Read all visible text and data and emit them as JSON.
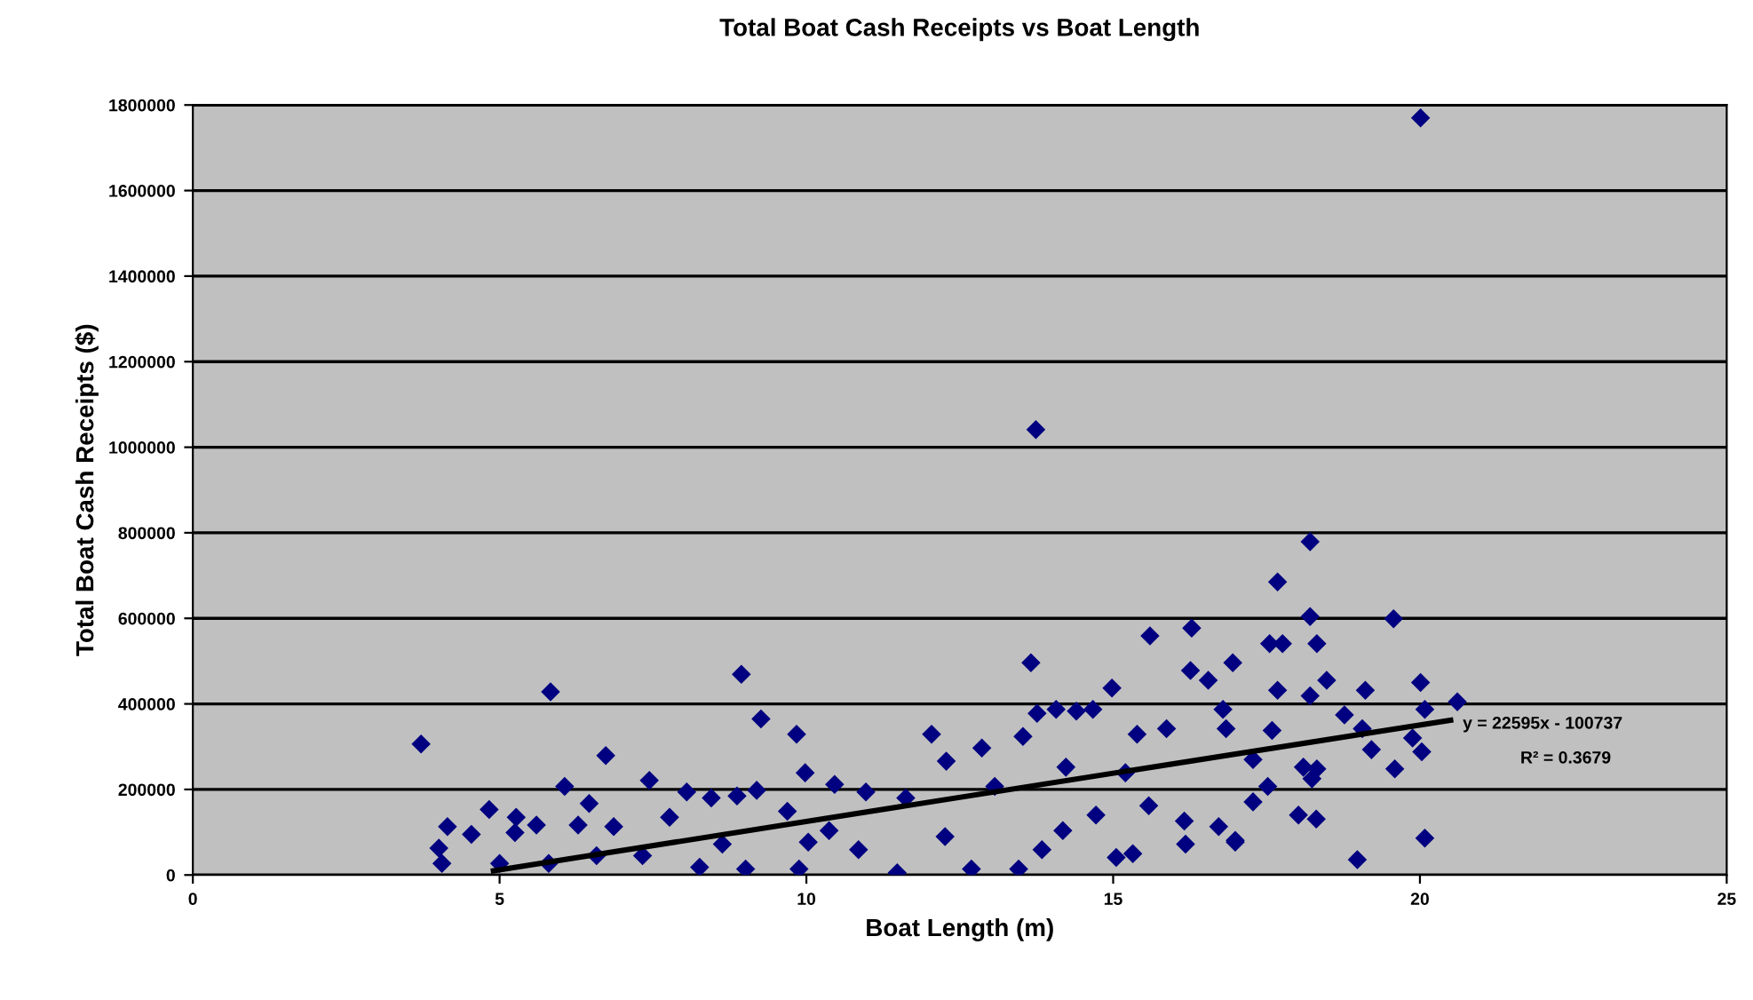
{
  "chart_data": {
    "type": "scatter",
    "title": "Total Boat Cash Receipts vs Boat Length",
    "xlabel": "Boat Length (m)",
    "ylabel": "Total Boat Cash Receipts ($)",
    "xlim": [
      0,
      25
    ],
    "xticks": [
      0,
      5,
      10,
      15,
      20,
      25
    ],
    "ylim": [
      0,
      1800000
    ],
    "yticks": [
      0,
      200000,
      400000,
      600000,
      800000,
      1000000,
      1200000,
      1400000,
      1600000,
      1800000
    ],
    "grid": "y",
    "marker": "diamond",
    "legend": false,
    "series": [
      {
        "color": "#000080",
        "x": [
          3.72,
          5.83,
          6.73,
          6.06,
          7.44,
          8.05,
          8.45,
          6.46,
          4.83,
          4.01,
          4.06,
          4.15,
          4.54,
          5.27,
          5.6,
          6.28,
          6.86,
          7.77,
          8.26,
          7.33,
          5.8,
          5.0,
          6.58,
          8.94,
          9.26,
          9.84,
          9.98,
          9.19,
          10.46,
          10.97,
          12.04,
          12.28,
          12.86,
          13.66,
          13.76,
          14.07,
          13.53,
          14.4,
          14.67,
          14.98,
          15.6,
          16.28,
          16.26,
          16.55,
          16.95,
          16.79,
          15.05,
          15.32,
          16.18,
          16.99,
          16.72,
          16.16,
          15.58,
          14.72,
          14.18,
          13.84,
          13.46,
          12.69,
          11.48,
          12.26,
          11.62,
          10.85,
          9.88,
          9.01,
          8.63,
          9.69,
          10.37,
          8.87,
          13.07,
          14.23,
          15.39,
          15.87,
          15.2,
          20.01,
          18.21,
          17.68,
          18.21,
          19.57,
          17.55,
          17.76,
          18.32,
          17.68,
          18.48,
          19.11,
          20.01,
          20.61,
          20.08,
          18.21,
          18.77,
          19.06,
          19.88,
          20.03,
          19.59,
          19.21,
          18.32,
          18.24,
          18.1,
          17.59,
          17.28,
          17.52,
          17.28,
          18.02,
          18.31,
          16.99,
          18.98,
          20.08,
          16.84,
          13.74,
          10.03,
          5.25
        ],
        "values": [
          306000,
          428000,
          279000,
          207000,
          221000,
          194000,
          180000,
          167000,
          153000,
          63000,
          27000,
          113000,
          95000,
          135000,
          117000,
          117000,
          113000,
          135000,
          18000,
          45000,
          27000,
          27000,
          45000,
          469000,
          365000,
          329000,
          239000,
          198000,
          212000,
          194000,
          329000,
          266000,
          297000,
          496000,
          378000,
          387000,
          324000,
          383000,
          387000,
          437000,
          559000,
          577000,
          478000,
          455000,
          496000,
          387000,
          41000,
          50000,
          72000,
          77000,
          113000,
          126000,
          162000,
          140000,
          104000,
          59000,
          14000,
          14000,
          5000,
          90000,
          180000,
          59000,
          14000,
          14000,
          72000,
          149000,
          104000,
          185000,
          207000,
          252000,
          329000,
          342000,
          239000,
          1770000,
          779000,
          685000,
          604000,
          599000,
          541000,
          541000,
          541000,
          432000,
          455000,
          432000,
          450000,
          405000,
          387000,
          419000,
          374000,
          342000,
          320000,
          288000,
          248000,
          293000,
          248000,
          225000,
          252000,
          338000,
          270000,
          207000,
          171000,
          140000,
          131000,
          81000,
          36000,
          86000,
          342000,
          1041000,
          77000,
          99000
        ]
      },
      {
        "type": "line",
        "marker": "none",
        "color": "#000000",
        "x": [
          4.9,
          20.5
        ],
        "values": [
          10000,
          362000
        ]
      }
    ],
    "annotations": [
      "y = 22595x - 100737",
      "R² = 0.3679"
    ]
  }
}
